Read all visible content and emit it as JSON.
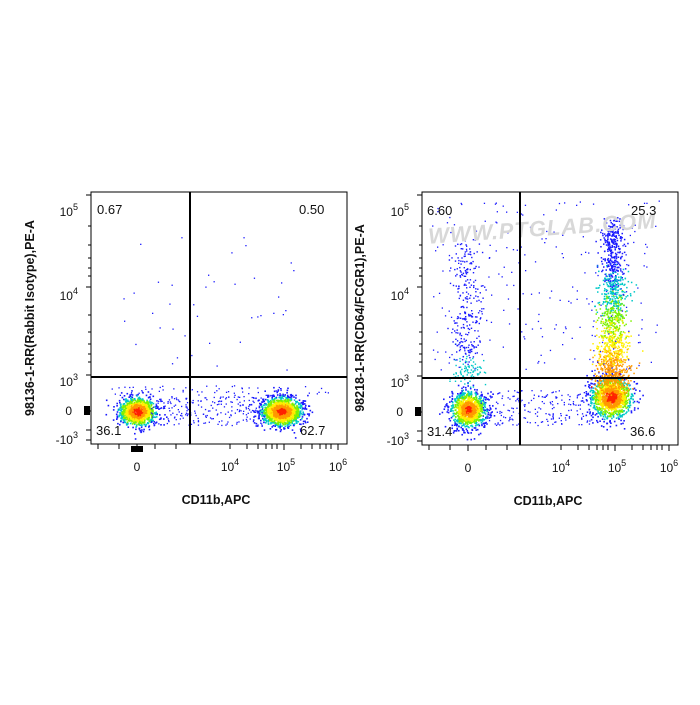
{
  "chart_data": [
    {
      "type": "scatter",
      "xlabel": "CD11b,APC",
      "ylabel": "98136-1-RR(Rabbit Isotype),PE-A",
      "x_scale": "biexponential",
      "y_scale": "biexponential",
      "x_tick_labels": [
        "0",
        "10^4",
        "10^5",
        "10^6"
      ],
      "y_tick_labels": [
        "10^5",
        "10^4",
        "10^3",
        "0",
        "-10^3"
      ],
      "gate_x": 2500,
      "gate_y": 1100,
      "quadrants": {
        "upper_left": "0.67",
        "upper_right": "0.50",
        "lower_left": "36.1",
        "lower_right": "62.7"
      },
      "populations": [
        {
          "name": "",
          "center_x": 0,
          "center_y": 0,
          "fraction": 36.1
        },
        {
          "name": "",
          "center_x": 90000,
          "center_y": 0,
          "fraction": 62.7
        }
      ]
    },
    {
      "type": "scatter",
      "xlabel": "CD11b,APC",
      "ylabel": "98218-1-RR(CD64/FCGR1),PE-A",
      "x_scale": "biexponential",
      "y_scale": "biexponential",
      "x_tick_labels": [
        "0",
        "10^4",
        "10^5",
        "10^6"
      ],
      "y_tick_labels": [
        "10^5",
        "10^4",
        "10^3",
        "0",
        "-10^3"
      ],
      "gate_x": 2500,
      "gate_y": 1100,
      "quadrants": {
        "upper_left": "6.60",
        "upper_right": "25.3",
        "lower_left": "31.4",
        "lower_right": "36.6"
      },
      "populations": [
        {
          "name": "",
          "center_x": 0,
          "center_y": 0,
          "fraction": 31.4
        },
        {
          "name": "",
          "center_x": 90000,
          "center_y": 0,
          "fraction": 36.6
        },
        {
          "name": "",
          "center_x": 90000,
          "center_y": 3000,
          "fraction": 25.3
        }
      ]
    }
  ],
  "watermark": "WWW.PTGLAB.COM",
  "colors": {
    "low": "#1a1aff",
    "mid": "#00c8c8",
    "high": "#ffee00",
    "peak": "#ff2200"
  }
}
